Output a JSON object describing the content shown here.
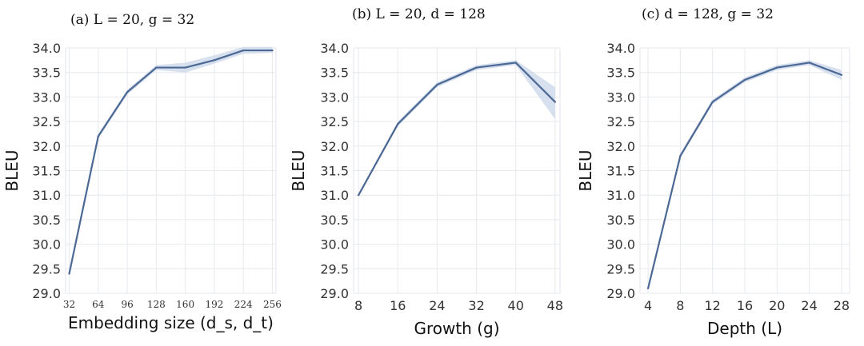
{
  "chart_data": [
    {
      "type": "line",
      "title": "(a) L = 20,  g = 32",
      "xlabel": "Embedding size (d_s, d_t)",
      "ylabel": "BLEU",
      "x": [
        32,
        64,
        96,
        128,
        160,
        192,
        224,
        256
      ],
      "xticks": [
        "32",
        "64",
        "96",
        "128",
        "160",
        "192",
        "224",
        "256"
      ],
      "yticks": [
        "29.0",
        "29.5",
        "30.0",
        "30.5",
        "31.0",
        "31.5",
        "32.0",
        "32.5",
        "33.0",
        "33.5",
        "34.0"
      ],
      "ylim": [
        29.0,
        34.0
      ],
      "grid": true,
      "series": [
        {
          "values": [
            29.4,
            32.2,
            33.1,
            33.6,
            33.6,
            33.75,
            33.95,
            33.95
          ],
          "lower": [
            29.38,
            32.15,
            33.05,
            33.55,
            33.5,
            33.68,
            33.88,
            33.9
          ],
          "upper": [
            29.42,
            32.25,
            33.15,
            33.65,
            33.7,
            33.85,
            34.02,
            34.02
          ]
        }
      ],
      "color": "#4c6894"
    },
    {
      "type": "line",
      "title": "(b) L = 20,  d = 128",
      "xlabel": "Growth (g)",
      "ylabel": "BLEU",
      "x": [
        8,
        16,
        24,
        32,
        40,
        48
      ],
      "xticks": [
        "8",
        "16",
        "24",
        "32",
        "40",
        "48"
      ],
      "yticks": [
        "29.0",
        "29.5",
        "30.0",
        "30.5",
        "31.0",
        "31.5",
        "32.0",
        "32.5",
        "33.0",
        "33.5",
        "34.0"
      ],
      "ylim": [
        29.0,
        34.0
      ],
      "grid": true,
      "series": [
        {
          "values": [
            31.0,
            32.45,
            33.25,
            33.6,
            33.7,
            32.9
          ],
          "lower": [
            30.98,
            32.4,
            33.2,
            33.55,
            33.65,
            32.55
          ],
          "upper": [
            31.02,
            32.5,
            33.3,
            33.65,
            33.75,
            33.2
          ]
        }
      ],
      "color": "#4c6894"
    },
    {
      "type": "line",
      "title": "(c) d = 128,  g = 32",
      "xlabel": "Depth (L)",
      "ylabel": "BLEU",
      "x": [
        4,
        8,
        12,
        16,
        20,
        24,
        28
      ],
      "xticks": [
        "4",
        "8",
        "12",
        "16",
        "20",
        "24",
        "28"
      ],
      "yticks": [
        "29.0",
        "29.5",
        "30.0",
        "30.5",
        "31.0",
        "31.5",
        "32.0",
        "32.5",
        "33.0",
        "33.5",
        "34.0"
      ],
      "ylim": [
        29.0,
        34.0
      ],
      "grid": true,
      "series": [
        {
          "values": [
            29.1,
            31.8,
            32.9,
            33.35,
            33.6,
            33.7,
            33.45
          ],
          "lower": [
            29.08,
            31.75,
            32.85,
            33.3,
            33.55,
            33.65,
            33.35
          ],
          "upper": [
            29.12,
            31.85,
            32.95,
            33.4,
            33.65,
            33.75,
            33.55
          ]
        }
      ],
      "color": "#4c6894"
    }
  ]
}
